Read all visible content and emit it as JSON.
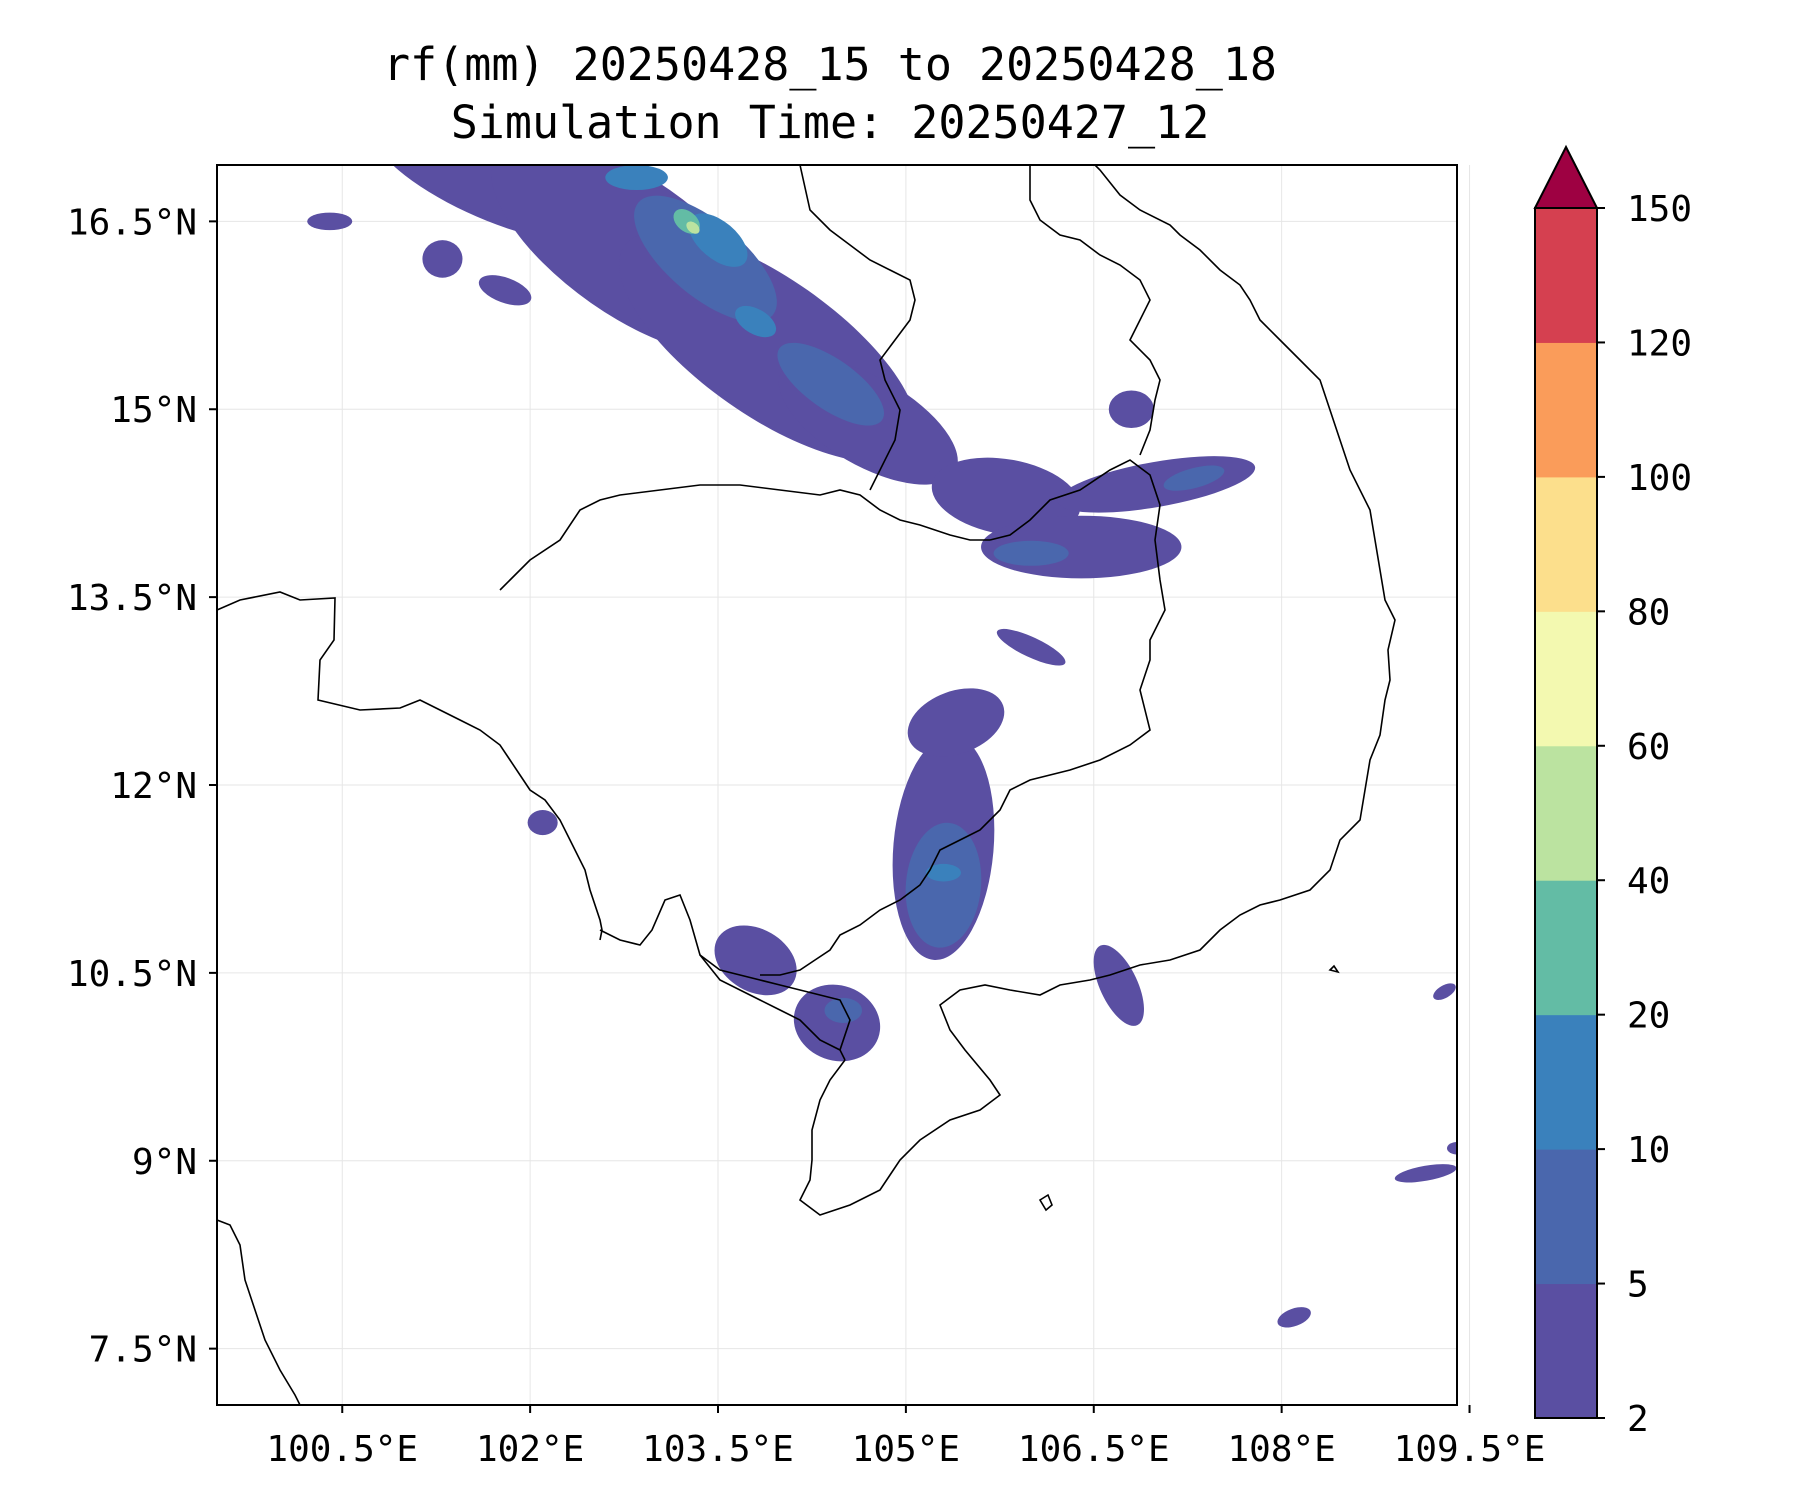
{
  "title": {
    "line1": "rf(mm) 20250428_15 to 20250428_18",
    "line2": "Simulation Time: 20250427_12"
  },
  "map": {
    "lon_range": [
      99.5,
      109.4
    ],
    "lat_range": [
      7.05,
      16.95
    ],
    "lon_ticks": [
      {
        "value": 100.5,
        "label": "100.5°E"
      },
      {
        "value": 102,
        "label": "102°E"
      },
      {
        "value": 103.5,
        "label": "103.5°E"
      },
      {
        "value": 105,
        "label": "105°E"
      },
      {
        "value": 106.5,
        "label": "106.5°E"
      },
      {
        "value": 108,
        "label": "108°E"
      },
      {
        "value": 109.5,
        "label": "109.5°E"
      }
    ],
    "lat_ticks": [
      {
        "value": 16.5,
        "label": "16.5°N"
      },
      {
        "value": 15,
        "label": "15°N"
      },
      {
        "value": 13.5,
        "label": "13.5°N"
      },
      {
        "value": 12,
        "label": "12°N"
      },
      {
        "value": 10.5,
        "label": "10.5°N"
      },
      {
        "value": 9,
        "label": "9°N"
      },
      {
        "value": 7.5,
        "label": "7.5°N"
      }
    ],
    "gridlines": true,
    "coast_color": "#000000",
    "rain_cells": [
      {
        "lon": 101.6,
        "lat": 16.8,
        "rx": 0.9,
        "ry": 0.25,
        "rot": 25,
        "level": 1
      },
      {
        "lon": 102.8,
        "lat": 16.3,
        "rx": 1.3,
        "ry": 0.55,
        "rot": 35,
        "level": 1
      },
      {
        "lon": 103.9,
        "lat": 15.5,
        "rx": 1.4,
        "ry": 0.55,
        "rot": 35,
        "level": 1
      },
      {
        "lon": 104.7,
        "lat": 14.9,
        "rx": 0.8,
        "ry": 0.35,
        "rot": 30,
        "level": 1
      },
      {
        "lon": 103.4,
        "lat": 16.2,
        "rx": 0.7,
        "ry": 0.3,
        "rot": 40,
        "level": 2
      },
      {
        "lon": 104.4,
        "lat": 15.2,
        "rx": 0.5,
        "ry": 0.2,
        "rot": 35,
        "level": 2
      },
      {
        "lon": 103.5,
        "lat": 16.35,
        "rx": 0.28,
        "ry": 0.15,
        "rot": 40,
        "level": 3
      },
      {
        "lon": 103.8,
        "lat": 15.7,
        "rx": 0.18,
        "ry": 0.1,
        "rot": 30,
        "level": 3
      },
      {
        "lon": 103.25,
        "lat": 16.5,
        "rx": 0.12,
        "ry": 0.08,
        "rot": 40,
        "level": 4
      },
      {
        "lon": 103.3,
        "lat": 16.45,
        "rx": 0.06,
        "ry": 0.04,
        "rot": 40,
        "level": 5
      },
      {
        "lon": 100.4,
        "lat": 16.5,
        "rx": 0.18,
        "ry": 0.07,
        "rot": 0,
        "level": 1
      },
      {
        "lon": 101.3,
        "lat": 16.2,
        "rx": 0.16,
        "ry": 0.15,
        "rot": 0,
        "level": 1
      },
      {
        "lon": 101.8,
        "lat": 15.95,
        "rx": 0.22,
        "ry": 0.1,
        "rot": 20,
        "level": 1
      },
      {
        "lon": 102.85,
        "lat": 16.85,
        "rx": 0.25,
        "ry": 0.1,
        "rot": 0,
        "level": 3
      },
      {
        "lon": 105.8,
        "lat": 14.3,
        "rx": 0.6,
        "ry": 0.3,
        "rot": 10,
        "level": 1
      },
      {
        "lon": 106.4,
        "lat": 13.9,
        "rx": 0.8,
        "ry": 0.25,
        "rot": 0,
        "level": 1
      },
      {
        "lon": 107.0,
        "lat": 14.4,
        "rx": 0.8,
        "ry": 0.18,
        "rot": -10,
        "level": 1
      },
      {
        "lon": 107.3,
        "lat": 14.45,
        "rx": 0.25,
        "ry": 0.08,
        "rot": -15,
        "level": 2
      },
      {
        "lon": 106.8,
        "lat": 15.0,
        "rx": 0.18,
        "ry": 0.15,
        "rot": 0,
        "level": 1
      },
      {
        "lon": 106.0,
        "lat": 13.85,
        "rx": 0.3,
        "ry": 0.1,
        "rot": 0,
        "level": 2
      },
      {
        "lon": 105.3,
        "lat": 11.5,
        "rx": 0.4,
        "ry": 0.9,
        "rot": 5,
        "level": 1
      },
      {
        "lon": 105.4,
        "lat": 12.5,
        "rx": 0.4,
        "ry": 0.25,
        "rot": -20,
        "level": 1
      },
      {
        "lon": 106.0,
        "lat": 13.1,
        "rx": 0.3,
        "ry": 0.08,
        "rot": 25,
        "level": 1
      },
      {
        "lon": 105.3,
        "lat": 11.2,
        "rx": 0.3,
        "ry": 0.5,
        "rot": 5,
        "level": 2
      },
      {
        "lon": 105.3,
        "lat": 11.3,
        "rx": 0.14,
        "ry": 0.07,
        "rot": 0,
        "level": 3
      },
      {
        "lon": 103.8,
        "lat": 10.6,
        "rx": 0.35,
        "ry": 0.25,
        "rot": 30,
        "level": 1
      },
      {
        "lon": 104.45,
        "lat": 10.1,
        "rx": 0.35,
        "ry": 0.3,
        "rot": 20,
        "level": 1
      },
      {
        "lon": 104.5,
        "lat": 10.2,
        "rx": 0.15,
        "ry": 0.1,
        "rot": 0,
        "level": 2
      },
      {
        "lon": 106.7,
        "lat": 10.4,
        "rx": 0.15,
        "ry": 0.35,
        "rot": -25,
        "level": 1
      },
      {
        "lon": 102.1,
        "lat": 11.7,
        "rx": 0.12,
        "ry": 0.1,
        "rot": 0,
        "level": 1
      },
      {
        "lon": 108.1,
        "lat": 7.75,
        "rx": 0.14,
        "ry": 0.07,
        "rot": -20,
        "level": 1
      },
      {
        "lon": 109.15,
        "lat": 8.9,
        "rx": 0.25,
        "ry": 0.06,
        "rot": -10,
        "level": 1
      },
      {
        "lon": 109.3,
        "lat": 10.35,
        "rx": 0.1,
        "ry": 0.05,
        "rot": -30,
        "level": 1
      },
      {
        "lon": 109.4,
        "lat": 9.1,
        "rx": 0.08,
        "ry": 0.05,
        "rot": 0,
        "level": 1
      }
    ]
  },
  "colorbar": {
    "levels": [
      "2",
      "5",
      "10",
      "20",
      "40",
      "60",
      "80",
      "100",
      "120",
      "150"
    ],
    "colors": [
      "#5a4fa2",
      "#4a67ad",
      "#3a81bc",
      "#63bca5",
      "#bbe3a0",
      "#f3f9b0",
      "#fcdf8c",
      "#fa9c5a",
      "#d54050"
    ],
    "extend_color": "#9e0142"
  }
}
